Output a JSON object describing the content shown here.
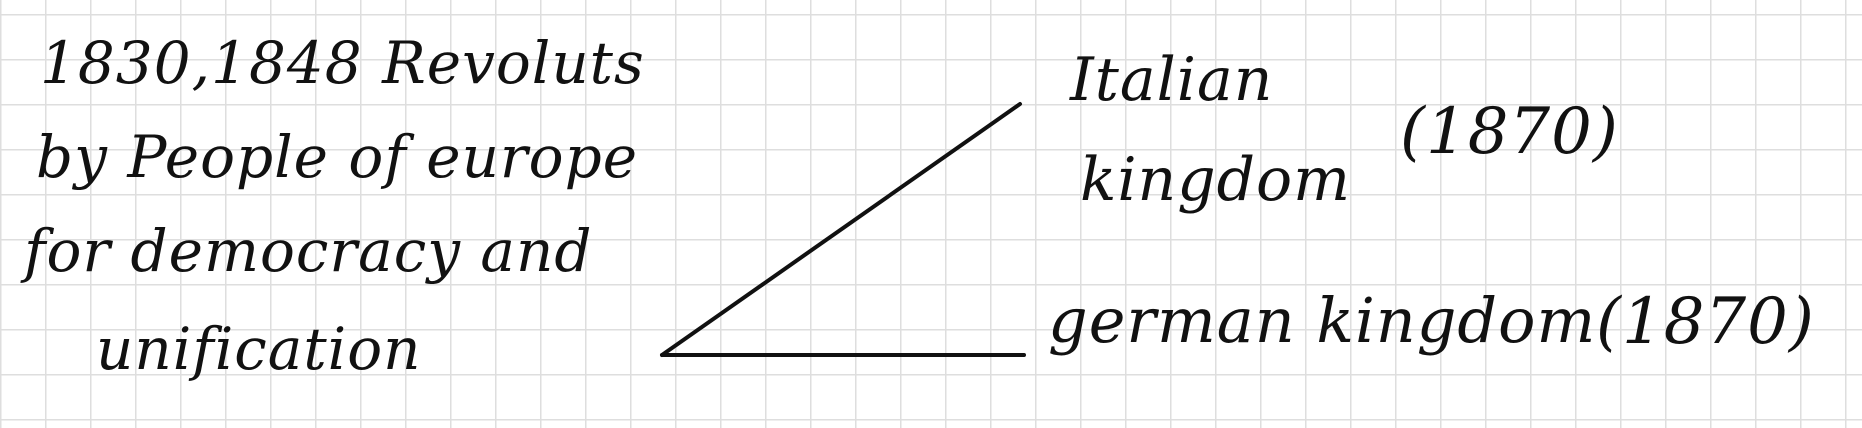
{
  "note": {
    "left_lines": [
      "1830,1848 Revoluts",
      "by People of europe",
      "for democracy and",
      "unification"
    ],
    "branches": {
      "italian_line_1": "Italian",
      "italian_line_2": "kingdom",
      "italian_year": "(1870)",
      "german": "german kingdom",
      "german_year": "(1870)"
    }
  },
  "colors": {
    "ink": "#111111",
    "grid": "#dedede",
    "paper": "#ffffff"
  }
}
